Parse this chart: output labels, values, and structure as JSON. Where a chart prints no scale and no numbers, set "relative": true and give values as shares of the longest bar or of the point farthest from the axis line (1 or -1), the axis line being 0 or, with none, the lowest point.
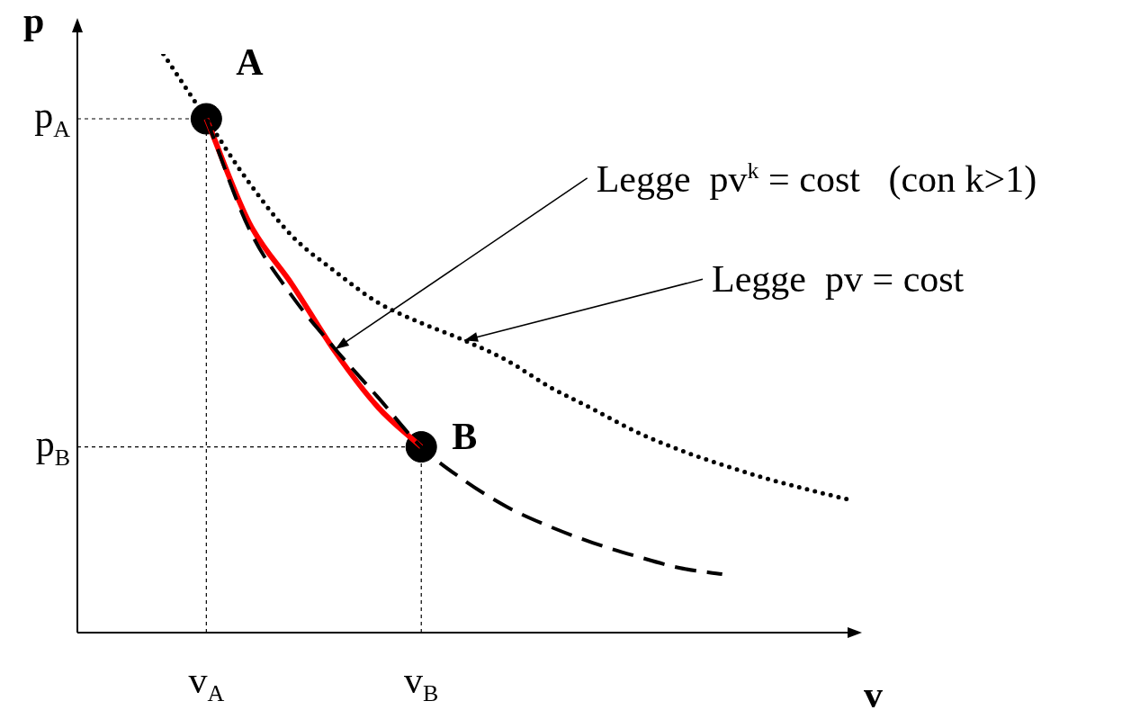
{
  "chart_data": {
    "type": "line",
    "relative": true,
    "xlabel": "v",
    "ylabel": "p",
    "categories": [
      null,
      null,
      null,
      "v$_{A}$",
      null,
      null,
      null,
      null,
      "v$_{B}$",
      null,
      null,
      null,
      null,
      null,
      null,
      null,
      null,
      null,
      null
    ],
    "legend": false,
    "ref_lines": [
      {
        "axis": "y",
        "value": 0.888,
        "label": "p$_{A}$",
        "line_style": "dashed",
        "color": "#000000"
      },
      {
        "axis": "y",
        "value": 0.321,
        "label": "p$_{B}$",
        "line_style": "dashed",
        "color": "#000000"
      }
    ],
    "series": [
      {
        "color": "#000000",
        "line_style": "dotted",
        "marker": "none",
        "values": [
          null,
          null,
          1.0,
          0.888,
          0.777,
          0.685,
          0.624,
          0.57,
          0.535,
          0.505,
          0.47,
          0.424,
          0.386,
          0.347,
          0.316,
          0.29,
          0.267,
          0.247,
          0.229
        ]
      },
      {
        "color": "#000000",
        "line_style": "dashed",
        "marker": "none",
        "values": [
          null,
          null,
          null,
          0.888,
          0.697,
          0.581,
          0.49,
          0.406,
          0.321,
          0.263,
          0.217,
          0.183,
          0.155,
          0.132,
          0.112,
          0.101,
          null,
          null,
          null
        ]
      },
      {
        "color": "#ff0000",
        "line_style": "solid",
        "marker": "none",
        "values": [
          null,
          null,
          null,
          0.888,
          0.708,
          0.601,
          0.485,
          0.389,
          0.321,
          null,
          null,
          null,
          null,
          null,
          null,
          null,
          null,
          null,
          null
        ]
      },
      {
        "type": "scatter",
        "color": "#000000",
        "marker": "circle",
        "values": [
          null,
          null,
          null,
          0.888,
          null,
          null,
          null,
          null,
          0.321,
          null,
          null,
          null,
          null,
          null,
          null,
          null,
          null,
          null,
          null
        ]
      }
    ],
    "annotations": [
      {
        "text": "A",
        "x": "v$_{A}$",
        "y": 0.888
      },
      {
        "text": "B",
        "x": "v$_{B}$",
        "y": 0.321
      },
      "Legge  pv$^{k}$ = cost   (con k>1)",
      "Legge  pv = cost"
    ]
  }
}
